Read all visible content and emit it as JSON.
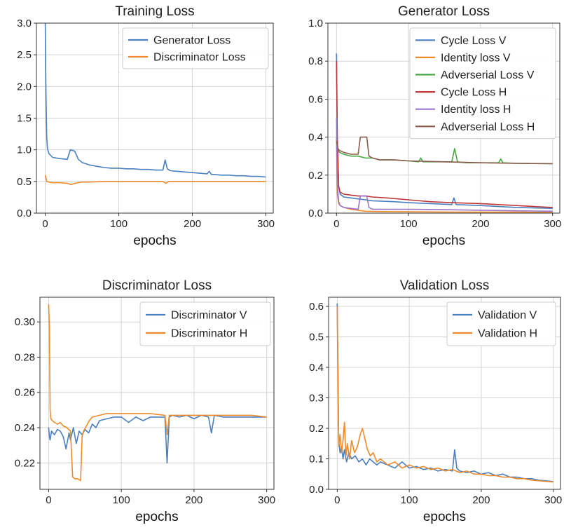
{
  "colors": {
    "blue": "#4a7fc0",
    "orange": "#ee8a2a",
    "green": "#4aa843",
    "red": "#c0373a",
    "purple": "#9a74c8",
    "brown": "#8c5a4c",
    "grid": "#d4d4d4",
    "axis": "#333333"
  },
  "chart_data": [
    {
      "type": "line",
      "title": "Training Loss",
      "xlabel": "epochs",
      "ylabel": "",
      "xlim": [
        -12,
        310
      ],
      "ylim": [
        0,
        3.0
      ],
      "xticks": [
        0,
        100,
        200,
        300
      ],
      "yticks": [
        0.0,
        0.5,
        1.0,
        1.5,
        2.0,
        2.5,
        3.0
      ],
      "ytick_labels": [
        "0.0",
        "0.5",
        "1.0",
        "1.5",
        "2.0",
        "2.5",
        "3.0"
      ],
      "grid": true,
      "legend": "top-right",
      "series": [
        {
          "name": "Generator Loss",
          "color": "blue",
          "x": [
            0,
            1,
            2,
            3,
            5,
            10,
            20,
            30,
            34,
            40,
            45,
            50,
            60,
            70,
            80,
            90,
            100,
            110,
            120,
            130,
            140,
            150,
            160,
            163,
            166,
            170,
            180,
            190,
            200,
            210,
            220,
            223,
            226,
            230,
            240,
            250,
            260,
            270,
            280,
            290,
            300
          ],
          "y": [
            3.0,
            1.9,
            1.2,
            1.02,
            0.94,
            0.88,
            0.86,
            0.85,
            1.0,
            0.98,
            0.85,
            0.8,
            0.76,
            0.74,
            0.72,
            0.71,
            0.71,
            0.7,
            0.7,
            0.69,
            0.69,
            0.68,
            0.68,
            0.84,
            0.7,
            0.67,
            0.66,
            0.65,
            0.64,
            0.63,
            0.62,
            0.66,
            0.61,
            0.61,
            0.6,
            0.6,
            0.59,
            0.59,
            0.58,
            0.58,
            0.57
          ]
        },
        {
          "name": "Discriminator Loss",
          "color": "orange",
          "x": [
            0,
            1,
            2,
            5,
            10,
            20,
            30,
            35,
            40,
            45,
            50,
            60,
            80,
            100,
            120,
            140,
            160,
            164,
            168,
            180,
            200,
            220,
            240,
            260,
            280,
            300
          ],
          "y": [
            0.6,
            0.55,
            0.5,
            0.49,
            0.48,
            0.48,
            0.47,
            0.45,
            0.47,
            0.48,
            0.49,
            0.49,
            0.5,
            0.5,
            0.5,
            0.5,
            0.5,
            0.47,
            0.5,
            0.5,
            0.5,
            0.5,
            0.5,
            0.5,
            0.5,
            0.5
          ]
        }
      ]
    },
    {
      "type": "line",
      "title": "Generator Loss",
      "xlabel": "epochs",
      "ylabel": "",
      "xlim": [
        -12,
        310
      ],
      "ylim": [
        0,
        1.0
      ],
      "xticks": [
        0,
        100,
        200,
        300
      ],
      "yticks": [
        0.0,
        0.2,
        0.4,
        0.6,
        0.8,
        1.0
      ],
      "ytick_labels": [
        "0.0",
        "0.2",
        "0.4",
        "0.6",
        "0.8",
        "1.0"
      ],
      "grid": true,
      "legend": "top-right",
      "series": [
        {
          "name": "Cycle Loss V",
          "color": "blue",
          "x": [
            0,
            1,
            3,
            5,
            10,
            20,
            30,
            40,
            50,
            80,
            100,
            130,
            160,
            163,
            166,
            200,
            250,
            300
          ],
          "y": [
            0.84,
            0.4,
            0.14,
            0.1,
            0.085,
            0.08,
            0.075,
            0.07,
            0.065,
            0.06,
            0.055,
            0.05,
            0.045,
            0.08,
            0.045,
            0.04,
            0.03,
            0.025
          ]
        },
        {
          "name": "Identity loss V",
          "color": "orange",
          "x": [
            0,
            1,
            3,
            5,
            10,
            20,
            30,
            40,
            60,
            100,
            150,
            200,
            250,
            300
          ],
          "y": [
            0.4,
            0.1,
            0.05,
            0.04,
            0.03,
            0.02,
            0.015,
            0.01,
            0.008,
            0.007,
            0.006,
            0.005,
            0.005,
            0.004
          ]
        },
        {
          "name": "Adverserial Loss V",
          "color": "green",
          "x": [
            0,
            2,
            4,
            10,
            20,
            30,
            40,
            50,
            60,
            80,
            100,
            114,
            117,
            120,
            140,
            160,
            164,
            168,
            180,
            200,
            225,
            228,
            231,
            250,
            300
          ],
          "y": [
            0.35,
            0.33,
            0.32,
            0.31,
            0.3,
            0.3,
            0.29,
            0.29,
            0.28,
            0.28,
            0.275,
            0.27,
            0.29,
            0.27,
            0.27,
            0.27,
            0.34,
            0.27,
            0.265,
            0.265,
            0.265,
            0.285,
            0.265,
            0.262,
            0.26
          ]
        },
        {
          "name": "Cycle Loss H",
          "color": "red",
          "x": [
            0,
            1,
            3,
            5,
            10,
            20,
            30,
            40,
            50,
            70,
            100,
            130,
            160,
            200,
            250,
            300
          ],
          "y": [
            0.8,
            0.4,
            0.14,
            0.11,
            0.1,
            0.095,
            0.09,
            0.09,
            0.085,
            0.08,
            0.07,
            0.06,
            0.055,
            0.05,
            0.04,
            0.03
          ]
        },
        {
          "name": "Identity loss H",
          "color": "purple",
          "x": [
            0,
            1,
            3,
            5,
            10,
            20,
            30,
            33,
            36,
            42,
            45,
            50,
            60,
            80,
            100,
            150,
            200,
            250,
            300
          ],
          "y": [
            0.5,
            0.15,
            0.06,
            0.04,
            0.03,
            0.025,
            0.02,
            0.09,
            0.09,
            0.09,
            0.03,
            0.02,
            0.02,
            0.02,
            0.02,
            0.018,
            0.015,
            0.012,
            0.01
          ]
        },
        {
          "name": "Adverserial Loss H",
          "color": "brown",
          "x": [
            0,
            2,
            4,
            10,
            20,
            30,
            33,
            36,
            42,
            45,
            50,
            60,
            80,
            100,
            150,
            200,
            250,
            300
          ],
          "y": [
            0.38,
            0.34,
            0.33,
            0.32,
            0.31,
            0.31,
            0.4,
            0.4,
            0.4,
            0.3,
            0.29,
            0.28,
            0.28,
            0.275,
            0.27,
            0.265,
            0.262,
            0.26
          ]
        }
      ]
    },
    {
      "type": "line",
      "title": "Discriminator Loss",
      "xlabel": "epochs",
      "ylabel": "",
      "xlim": [
        -12,
        310
      ],
      "ylim": [
        0.205,
        0.314
      ],
      "xticks": [
        0,
        100,
        200,
        300
      ],
      "yticks": [
        0.22,
        0.24,
        0.26,
        0.28,
        0.3
      ],
      "ytick_labels": [
        "0.22",
        "0.24",
        "0.26",
        "0.28",
        "0.30"
      ],
      "grid": true,
      "legend": "top-right",
      "series": [
        {
          "name": "Discriminator V",
          "color": "blue",
          "x": [
            0,
            1,
            2,
            4,
            8,
            12,
            16,
            20,
            24,
            28,
            30,
            34,
            38,
            42,
            46,
            50,
            55,
            60,
            65,
            70,
            80,
            90,
            100,
            110,
            120,
            130,
            140,
            150,
            160,
            163,
            166,
            170,
            180,
            190,
            200,
            210,
            220,
            224,
            228,
            240,
            260,
            280,
            300
          ],
          "y": [
            0.24,
            0.235,
            0.233,
            0.238,
            0.236,
            0.239,
            0.238,
            0.235,
            0.228,
            0.237,
            0.233,
            0.24,
            0.231,
            0.238,
            0.236,
            0.239,
            0.237,
            0.242,
            0.24,
            0.244,
            0.245,
            0.246,
            0.246,
            0.243,
            0.246,
            0.244,
            0.246,
            0.246,
            0.246,
            0.22,
            0.246,
            0.247,
            0.246,
            0.247,
            0.245,
            0.247,
            0.246,
            0.237,
            0.247,
            0.246,
            0.246,
            0.246,
            0.246
          ]
        },
        {
          "name": "Discriminator H",
          "color": "orange",
          "x": [
            0,
            1,
            2,
            3,
            5,
            8,
            12,
            16,
            20,
            25,
            30,
            33,
            36,
            40,
            44,
            46,
            48,
            52,
            56,
            60,
            70,
            80,
            100,
            120,
            140,
            160,
            163,
            166,
            180,
            200,
            220,
            240,
            260,
            280,
            300
          ],
          "y": [
            0.31,
            0.297,
            0.25,
            0.245,
            0.244,
            0.243,
            0.242,
            0.243,
            0.241,
            0.24,
            0.238,
            0.212,
            0.211,
            0.211,
            0.21,
            0.235,
            0.238,
            0.241,
            0.244,
            0.246,
            0.247,
            0.248,
            0.248,
            0.248,
            0.248,
            0.247,
            0.236,
            0.247,
            0.247,
            0.247,
            0.247,
            0.247,
            0.247,
            0.247,
            0.246
          ]
        }
      ]
    },
    {
      "type": "line",
      "title": "Validation Loss",
      "xlabel": "epochs",
      "ylabel": "",
      "xlim": [
        -12,
        310
      ],
      "ylim": [
        0,
        0.63
      ],
      "xticks": [
        0,
        100,
        200,
        300
      ],
      "yticks": [
        0.0,
        0.1,
        0.2,
        0.3,
        0.4,
        0.5,
        0.6
      ],
      "ytick_labels": [
        "0.0",
        "0.1",
        "0.2",
        "0.3",
        "0.4",
        "0.5",
        "0.6"
      ],
      "grid": true,
      "legend": "top-right",
      "series": [
        {
          "name": "Validation V",
          "color": "blue",
          "x": [
            0,
            1,
            2,
            4,
            6,
            8,
            10,
            13,
            16,
            20,
            25,
            30,
            35,
            40,
            45,
            50,
            55,
            60,
            70,
            80,
            90,
            100,
            110,
            120,
            130,
            140,
            150,
            160,
            163,
            166,
            170,
            180,
            190,
            200,
            210,
            220,
            230,
            240,
            250,
            260,
            270,
            280,
            290,
            300
          ],
          "y": [
            0.61,
            0.4,
            0.16,
            0.12,
            0.14,
            0.1,
            0.13,
            0.09,
            0.12,
            0.1,
            0.11,
            0.09,
            0.1,
            0.08,
            0.1,
            0.09,
            0.08,
            0.09,
            0.08,
            0.07,
            0.09,
            0.07,
            0.075,
            0.065,
            0.07,
            0.06,
            0.065,
            0.06,
            0.13,
            0.07,
            0.06,
            0.055,
            0.06,
            0.05,
            0.055,
            0.045,
            0.05,
            0.04,
            0.04,
            0.035,
            0.035,
            0.03,
            0.028,
            0.025
          ]
        },
        {
          "name": "Validation H",
          "color": "orange",
          "x": [
            0,
            1,
            2,
            4,
            6,
            8,
            10,
            12,
            14,
            17,
            20,
            24,
            28,
            32,
            35,
            38,
            42,
            46,
            50,
            55,
            60,
            70,
            80,
            90,
            100,
            110,
            120,
            130,
            140,
            150,
            160,
            170,
            180,
            190,
            200,
            210,
            220,
            230,
            240,
            250,
            260,
            270,
            280,
            290,
            300
          ],
          "y": [
            0.6,
            0.35,
            0.14,
            0.18,
            0.12,
            0.16,
            0.22,
            0.11,
            0.15,
            0.1,
            0.16,
            0.12,
            0.14,
            0.18,
            0.2,
            0.17,
            0.13,
            0.11,
            0.12,
            0.09,
            0.1,
            0.08,
            0.09,
            0.07,
            0.08,
            0.07,
            0.075,
            0.065,
            0.07,
            0.06,
            0.065,
            0.055,
            0.06,
            0.05,
            0.05,
            0.045,
            0.045,
            0.04,
            0.04,
            0.035,
            0.035,
            0.03,
            0.028,
            0.026,
            0.024
          ]
        }
      ]
    }
  ]
}
